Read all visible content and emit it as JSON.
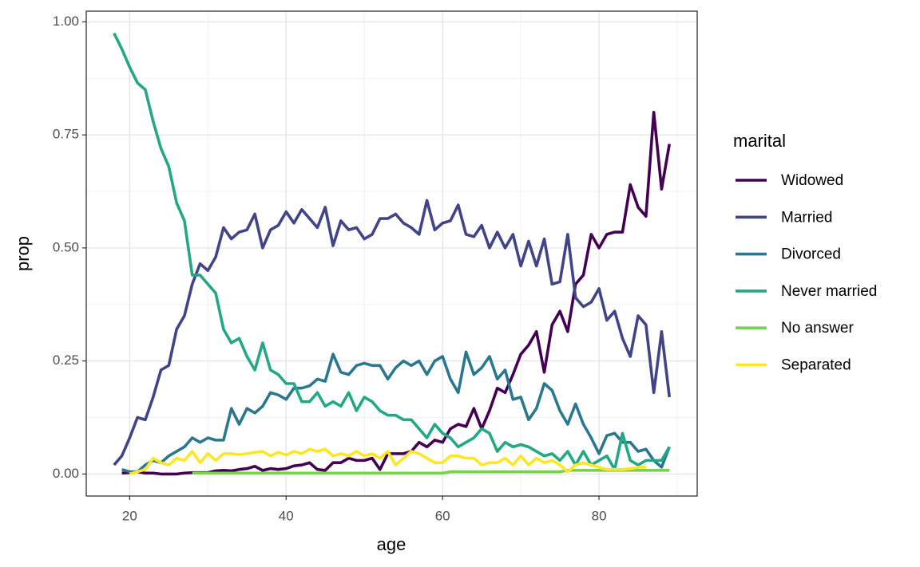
{
  "chart_data": {
    "type": "line",
    "x_label": "age",
    "y_label": "prop",
    "legend_title": "marital",
    "legend_position": "right",
    "x": [
      18,
      19,
      20,
      21,
      22,
      23,
      24,
      25,
      26,
      27,
      28,
      29,
      30,
      31,
      32,
      33,
      34,
      35,
      36,
      37,
      38,
      39,
      40,
      41,
      42,
      43,
      44,
      45,
      46,
      47,
      48,
      49,
      50,
      51,
      52,
      53,
      54,
      55,
      56,
      57,
      58,
      59,
      60,
      61,
      62,
      63,
      64,
      65,
      66,
      67,
      68,
      69,
      70,
      71,
      72,
      73,
      74,
      75,
      76,
      77,
      78,
      79,
      80,
      81,
      82,
      83,
      84,
      85,
      86,
      87,
      88,
      89
    ],
    "xlim": [
      14.45,
      92.55
    ],
    "xticks": [
      20,
      40,
      60,
      80
    ],
    "x_minor_grid": [
      30,
      50,
      70,
      90
    ],
    "ylim": [
      -0.0487,
      1.0237
    ],
    "yticks": [
      {
        "value": 0,
        "label": "0.00"
      },
      {
        "value": 0.25,
        "label": "0.25"
      },
      {
        "value": 0.5,
        "label": "0.50"
      },
      {
        "value": 0.75,
        "label": "0.75"
      },
      {
        "value": 1,
        "label": "1.00"
      }
    ],
    "y_minor_grid": [
      0.125,
      0.375,
      0.625,
      0.875
    ],
    "grid": true,
    "series": [
      {
        "name": "Widowed",
        "color": "#440154",
        "values": [
          null,
          0.002,
          0.003,
          0.005,
          0.002,
          0.002,
          0,
          0,
          0,
          0.002,
          0.003,
          0.003,
          0.003,
          0.007,
          0.008,
          0.007,
          0.01,
          0.012,
          0.017,
          0.008,
          0.012,
          0.01,
          0.012,
          0.018,
          0.02,
          0.025,
          0.01,
          0.008,
          0.025,
          0.025,
          0.035,
          0.03,
          0.03,
          0.035,
          0.01,
          0.045,
          0.045,
          0.045,
          0.05,
          0.07,
          0.06,
          0.075,
          0.07,
          0.1,
          0.11,
          0.105,
          0.145,
          0.1,
          0.14,
          0.19,
          0.18,
          0.22,
          0.265,
          0.285,
          0.315,
          0.225,
          0.33,
          0.36,
          0.315,
          0.42,
          0.44,
          0.53,
          0.5,
          0.53,
          0.535,
          0.535,
          0.64,
          0.59,
          0.57,
          0.8,
          0.63,
          0.73
        ]
      },
      {
        "name": "Married",
        "color": "#414487",
        "values": [
          0.02,
          0.04,
          0.08,
          0.125,
          0.12,
          0.17,
          0.23,
          0.24,
          0.32,
          0.35,
          0.42,
          0.465,
          0.45,
          0.48,
          0.545,
          0.52,
          0.535,
          0.54,
          0.575,
          0.5,
          0.54,
          0.55,
          0.58,
          0.555,
          0.585,
          0.565,
          0.545,
          0.59,
          0.505,
          0.56,
          0.54,
          0.545,
          0.52,
          0.53,
          0.565,
          0.565,
          0.575,
          0.555,
          0.545,
          0.53,
          0.605,
          0.54,
          0.555,
          0.56,
          0.595,
          0.53,
          0.525,
          0.55,
          0.5,
          0.535,
          0.5,
          0.53,
          0.46,
          0.515,
          0.46,
          0.52,
          0.42,
          0.425,
          0.53,
          0.39,
          0.37,
          0.38,
          0.41,
          0.34,
          0.36,
          0.3,
          0.26,
          0.35,
          0.33,
          0.18,
          0.315,
          0.17
        ]
      },
      {
        "name": "Divorced",
        "color": "#2A788E",
        "values": [
          null,
          0.01,
          0.005,
          0.005,
          0.02,
          0.03,
          0.025,
          0.04,
          0.05,
          0.06,
          0.08,
          0.07,
          0.08,
          0.075,
          0.075,
          0.145,
          0.11,
          0.145,
          0.135,
          0.15,
          0.18,
          0.175,
          0.165,
          0.19,
          0.19,
          0.195,
          0.21,
          0.205,
          0.265,
          0.225,
          0.22,
          0.24,
          0.245,
          0.24,
          0.24,
          0.21,
          0.235,
          0.25,
          0.24,
          0.25,
          0.22,
          0.25,
          0.26,
          0.21,
          0.18,
          0.27,
          0.22,
          0.235,
          0.26,
          0.21,
          0.23,
          0.165,
          0.17,
          0.12,
          0.145,
          0.2,
          0.185,
          0.14,
          0.11,
          0.155,
          0.11,
          0.08,
          0.045,
          0.085,
          0.09,
          0.07,
          0.07,
          0.05,
          0.055,
          0.03,
          0.015,
          0.06
        ]
      },
      {
        "name": "Never married",
        "color": "#22A884",
        "values": [
          0.975,
          0.94,
          0.9,
          0.865,
          0.85,
          0.78,
          0.72,
          0.68,
          0.6,
          0.56,
          0.44,
          0.44,
          0.42,
          0.4,
          0.32,
          0.29,
          0.3,
          0.26,
          0.23,
          0.29,
          0.23,
          0.22,
          0.2,
          0.2,
          0.16,
          0.16,
          0.18,
          0.15,
          0.16,
          0.15,
          0.18,
          0.14,
          0.17,
          0.16,
          0.14,
          0.13,
          0.13,
          0.12,
          0.12,
          0.1,
          0.08,
          0.11,
          0.09,
          0.08,
          0.06,
          0.07,
          0.08,
          0.1,
          0.09,
          0.05,
          0.07,
          0.06,
          0.065,
          0.06,
          0.05,
          0.04,
          0.045,
          0.03,
          0.05,
          0.02,
          0.05,
          0.02,
          0.03,
          0.04,
          0.01,
          0.09,
          0.03,
          0.02,
          0.03,
          0.03,
          0.03,
          0.06
        ]
      },
      {
        "name": "No answer",
        "color": "#7AD151",
        "values": [
          null,
          null,
          null,
          null,
          null,
          null,
          null,
          null,
          null,
          null,
          0.002,
          0.002,
          0.002,
          0.002,
          0.002,
          0.002,
          0.002,
          0.002,
          0.002,
          0.002,
          0.002,
          0.002,
          0.002,
          0.002,
          0.002,
          0.002,
          0.002,
          0.002,
          0.002,
          0.002,
          0.002,
          0.002,
          0.002,
          0.002,
          0.002,
          0.002,
          0.002,
          0.002,
          0.002,
          0.002,
          0.002,
          0.002,
          0.002,
          0.005,
          0.005,
          0.005,
          0.005,
          0.005,
          0.005,
          0.005,
          0.005,
          0.005,
          0.005,
          0.005,
          0.005,
          0.005,
          0.005,
          0.005,
          0.008,
          0.008,
          0.008,
          0.008,
          0.008,
          0.008,
          0.008,
          0.008,
          0.008,
          0.008,
          0.008,
          0.008,
          0.008,
          0.008
        ]
      },
      {
        "name": "Separated",
        "color": "#FDE725",
        "values": [
          null,
          null,
          0,
          0.005,
          0.01,
          0.035,
          0.025,
          0.02,
          0.035,
          0.03,
          0.05,
          0.025,
          0.045,
          0.03,
          0.045,
          0.045,
          0.043,
          0.045,
          0.048,
          0.05,
          0.04,
          0.048,
          0.042,
          0.05,
          0.045,
          0.055,
          0.05,
          0.055,
          0.04,
          0.045,
          0.04,
          0.05,
          0.04,
          0.045,
          0.035,
          0.05,
          0.02,
          0.035,
          0.05,
          0.045,
          0.035,
          0.025,
          0.025,
          0.04,
          0.04,
          0.035,
          0.035,
          0.02,
          0.025,
          0.025,
          0.035,
          0.02,
          0.04,
          0.02,
          0.035,
          0.025,
          0.03,
          0.02,
          0.005,
          0.02,
          0.025,
          0.02,
          0.015,
          0.01,
          0.01,
          0.01,
          0.012,
          0.015,
          0.015,
          null,
          null,
          null
        ]
      }
    ]
  }
}
